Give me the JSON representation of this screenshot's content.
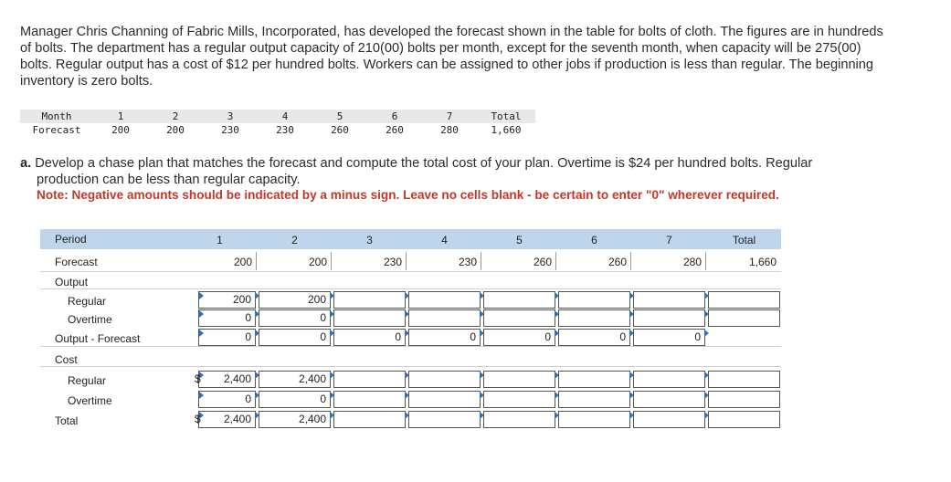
{
  "problem_text": "Manager Chris Channing of Fabric Mills, Incorporated, has developed the forecast shown in the table for bolts of cloth. The figures are in hundreds of bolts. The department has a regular output capacity of 210(00) bolts per month, except for the seventh month, when capacity will be 275(00) bolts. Regular output has a cost of $12 per hundred bolts. Workers can be assigned to other jobs if production is less than regular. The beginning inventory is zero bolts.",
  "forecast_table": {
    "month_label": "Month",
    "forecast_label": "Forecast",
    "months": [
      "1",
      "2",
      "3",
      "4",
      "5",
      "6",
      "7"
    ],
    "values": [
      "200",
      "200",
      "230",
      "230",
      "260",
      "260",
      "280"
    ],
    "total_label": "Total",
    "total_value": "1,660"
  },
  "question": {
    "part": "a.",
    "line1": "Develop a chase plan that matches the forecast and compute the total cost of your plan. Overtime is $24 per hundred bolts. Regular",
    "line2": "production can be less than regular capacity.",
    "note": "Note: Negative amounts should be indicated by a minus sign. Leave no cells blank - be certain to enter \"0\" wherever required."
  },
  "grid": {
    "period_label": "Period",
    "periods": [
      "1",
      "2",
      "3",
      "4",
      "5",
      "6",
      "7"
    ],
    "total_label": "Total",
    "rows": {
      "forecast": "Forecast",
      "output": "Output",
      "regular": "Regular",
      "overtime": "Overtime",
      "output_forecast": "Output - Forecast",
      "cost": "Cost",
      "cost_regular": "Regular",
      "cost_overtime": "Overtime",
      "total": "Total"
    },
    "forecast_values": [
      "200",
      "200",
      "230",
      "230",
      "260",
      "260",
      "280"
    ],
    "forecast_total": "1,660",
    "regular_values": [
      "200",
      "200",
      "",
      "",
      "",
      "",
      ""
    ],
    "overtime_values": [
      "0",
      "0",
      "",
      "",
      "",
      "",
      ""
    ],
    "output_forecast_values": [
      "0",
      "0",
      "0",
      "0",
      "0",
      "0",
      "0"
    ],
    "cost_regular_values": [
      "2,400",
      "2,400",
      "",
      "",
      "",
      "",
      ""
    ],
    "cost_overtime_values": [
      "0",
      "0",
      "",
      "",
      "",
      "",
      ""
    ],
    "total_values": [
      "2,400",
      "2,400",
      "",
      "",
      "",
      "",
      ""
    ],
    "currency_symbol": "$"
  }
}
